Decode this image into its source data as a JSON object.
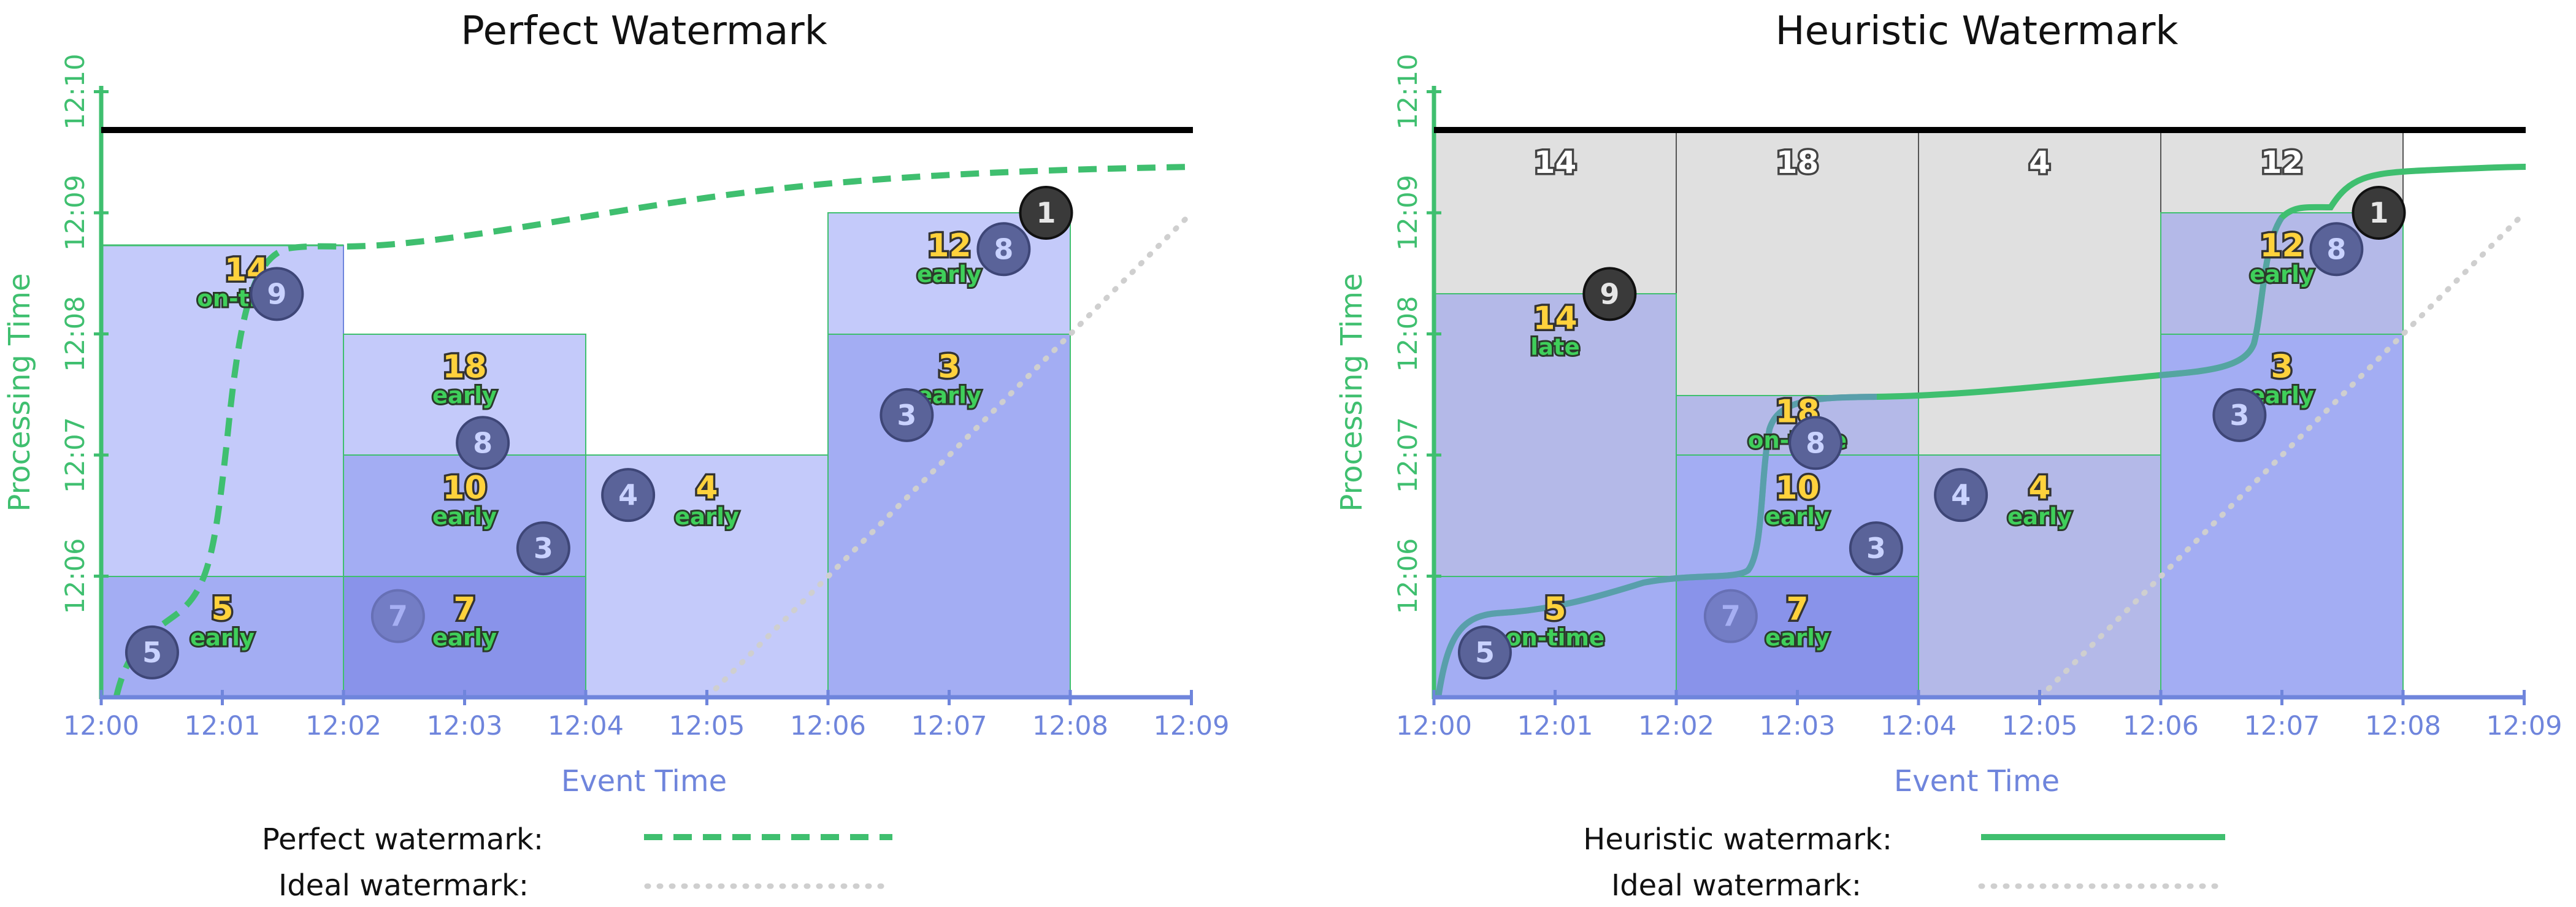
{
  "panels": [
    {
      "title": "Perfect Watermark",
      "x_ticks": [
        "12:00",
        "12:01",
        "12:02",
        "12:03",
        "12:04",
        "12:05",
        "12:06",
        "12:07",
        "12:08",
        "12:09"
      ],
      "y_ticks": [
        "12:06",
        "12:07",
        "12:08",
        "12:09",
        "12:10"
      ],
      "x_label": "Event Time",
      "y_label": "Processing Time",
      "pane_totals": [],
      "labels": [
        {
          "num": "14",
          "tag": "on-time",
          "ex": 1.2,
          "pt": 8.4
        },
        {
          "num": "18",
          "tag": "early",
          "ex": 3.0,
          "pt": 7.6
        },
        {
          "num": "10",
          "tag": "early",
          "ex": 3.0,
          "pt": 6.6
        },
        {
          "num": "5",
          "tag": "early",
          "ex": 1.0,
          "pt": 5.6
        },
        {
          "num": "7",
          "tag": "early",
          "ex": 3.0,
          "pt": 5.6
        },
        {
          "num": "4",
          "tag": "early",
          "ex": 5.0,
          "pt": 6.6
        },
        {
          "num": "12",
          "tag": "early",
          "ex": 7.0,
          "pt": 8.6
        },
        {
          "num": "3",
          "tag": "early",
          "ex": 7.0,
          "pt": 7.6
        }
      ],
      "points": [
        {
          "v": "9",
          "ex": 1.45,
          "pt": 8.33,
          "dark": false
        },
        {
          "v": "8",
          "ex": 3.15,
          "pt": 7.1,
          "dark": false
        },
        {
          "v": "3",
          "ex": 3.65,
          "pt": 6.23,
          "dark": false
        },
        {
          "v": "4",
          "ex": 4.35,
          "pt": 6.67,
          "dark": false
        },
        {
          "v": "5",
          "ex": 0.42,
          "pt": 5.37,
          "dark": false
        },
        {
          "v": "7",
          "ex": 2.45,
          "pt": 5.67,
          "dark": false,
          "faded": true
        },
        {
          "v": "3",
          "ex": 6.65,
          "pt": 7.33,
          "dark": false
        },
        {
          "v": "8",
          "ex": 7.45,
          "pt": 8.7,
          "dark": false
        },
        {
          "v": "1",
          "ex": 7.8,
          "pt": 9.0,
          "dark": true
        }
      ],
      "legend": [
        {
          "label": "Perfect watermark:",
          "style": "dashed-green"
        },
        {
          "label": "Ideal watermark:",
          "style": "dotted-gray"
        }
      ]
    },
    {
      "title": "Heuristic Watermark",
      "x_ticks": [
        "12:00",
        "12:01",
        "12:02",
        "12:03",
        "12:04",
        "12:05",
        "12:06",
        "12:07",
        "12:08",
        "12:09"
      ],
      "y_ticks": [
        "12:06",
        "12:07",
        "12:08",
        "12:09",
        "12:10"
      ],
      "x_label": "Event Time",
      "y_label": "Processing Time",
      "pane_totals": [
        {
          "v": "14",
          "ex": 1.0
        },
        {
          "v": "18",
          "ex": 3.0
        },
        {
          "v": "4",
          "ex": 5.0
        },
        {
          "v": "12",
          "ex": 7.0
        }
      ],
      "labels": [
        {
          "num": "14",
          "tag": "late",
          "ex": 1.0,
          "pt": 8.0
        },
        {
          "num": "18",
          "tag": "on-time",
          "ex": 3.0,
          "pt": 7.23
        },
        {
          "num": "10",
          "tag": "early",
          "ex": 3.0,
          "pt": 6.6
        },
        {
          "num": "5",
          "tag": "on-time",
          "ex": 1.0,
          "pt": 5.6
        },
        {
          "num": "7",
          "tag": "early",
          "ex": 3.0,
          "pt": 5.6
        },
        {
          "num": "4",
          "tag": "early",
          "ex": 5.0,
          "pt": 6.6
        },
        {
          "num": "12",
          "tag": "early",
          "ex": 7.0,
          "pt": 8.6
        },
        {
          "num": "3",
          "tag": "early",
          "ex": 7.0,
          "pt": 7.6
        }
      ],
      "points": [
        {
          "v": "9",
          "ex": 1.45,
          "pt": 8.33,
          "dark": true
        },
        {
          "v": "8",
          "ex": 3.15,
          "pt": 7.1,
          "dark": false
        },
        {
          "v": "3",
          "ex": 3.65,
          "pt": 6.23,
          "dark": false
        },
        {
          "v": "4",
          "ex": 4.35,
          "pt": 6.67,
          "dark": false
        },
        {
          "v": "5",
          "ex": 0.42,
          "pt": 5.37,
          "dark": false
        },
        {
          "v": "7",
          "ex": 2.45,
          "pt": 5.67,
          "dark": false,
          "faded": true
        },
        {
          "v": "3",
          "ex": 6.65,
          "pt": 7.33,
          "dark": false
        },
        {
          "v": "8",
          "ex": 7.45,
          "pt": 8.7,
          "dark": false
        },
        {
          "v": "1",
          "ex": 7.8,
          "pt": 9.0,
          "dark": true
        }
      ],
      "legend": [
        {
          "label": "Heuristic watermark:",
          "style": "solid-green"
        },
        {
          "label": "Ideal watermark:",
          "style": "dotted-gray"
        }
      ]
    }
  ],
  "colors": {
    "accent_green": "#3fbf6f",
    "axis_blue": "#6f85dc",
    "pane_light": "#c4cafa",
    "pane_mid": "#a3adf3",
    "pane_dark": "#8993ea",
    "late_gray": "#e0e0e0"
  }
}
